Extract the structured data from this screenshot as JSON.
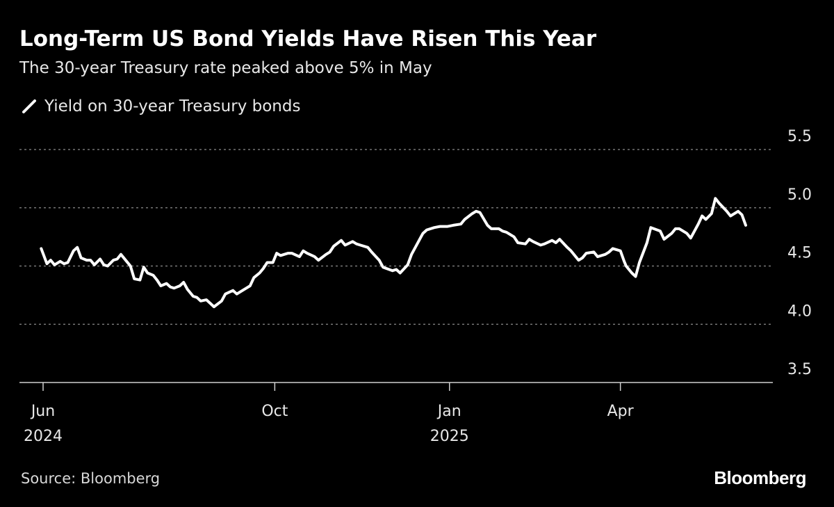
{
  "colors": {
    "background": "#000000",
    "line": "#ffffff",
    "grid": "#8c8c8c",
    "text": "#e8e8e8"
  },
  "source": "Source: Bloomberg",
  "brand": "Bloomberg",
  "chart_data": {
    "type": "line",
    "title": "Long-Term US Bond Yields Have Risen This Year",
    "subtitle": "The 30-year Treasury rate peaked above 5% in May",
    "xlabel": "",
    "ylabel": "",
    "ylim": [
      3.5,
      5.5
    ],
    "yticks": [
      3.5,
      4.0,
      4.5,
      5.0,
      5.5
    ],
    "ytick_labels": [
      "3.5",
      "4.0",
      "4.5",
      "5.0",
      "5.5"
    ],
    "grid": true,
    "legend": [
      "Yield on 30-year Treasury bonds"
    ],
    "x_range": [
      "2024-06-01",
      "2025-06-06"
    ],
    "xticks": [
      {
        "date": "2024-06-01",
        "label": "Jun",
        "sublabel": "2024"
      },
      {
        "date": "2024-10-01",
        "label": "Oct",
        "sublabel": ""
      },
      {
        "date": "2025-01-01",
        "label": "Jan",
        "sublabel": "2025"
      },
      {
        "date": "2025-04-01",
        "label": "Apr",
        "sublabel": ""
      }
    ],
    "series": [
      {
        "name": "Yield on 30-year Treasury bonds",
        "x": [
          "2024-05-31",
          "2024-06-03",
          "2024-06-05",
          "2024-06-07",
          "2024-06-10",
          "2024-06-12",
          "2024-06-14",
          "2024-06-17",
          "2024-06-19",
          "2024-06-21",
          "2024-06-24",
          "2024-06-26",
          "2024-06-28",
          "2024-07-01",
          "2024-07-03",
          "2024-07-05",
          "2024-07-08",
          "2024-07-10",
          "2024-07-12",
          "2024-07-15",
          "2024-07-17",
          "2024-07-19",
          "2024-07-22",
          "2024-07-24",
          "2024-07-26",
          "2024-07-29",
          "2024-07-31",
          "2024-08-02",
          "2024-08-05",
          "2024-08-07",
          "2024-08-09",
          "2024-08-12",
          "2024-08-14",
          "2024-08-16",
          "2024-08-19",
          "2024-08-21",
          "2024-08-23",
          "2024-08-26",
          "2024-08-28",
          "2024-08-30",
          "2024-09-03",
          "2024-09-05",
          "2024-09-09",
          "2024-09-11",
          "2024-09-13",
          "2024-09-16",
          "2024-09-18",
          "2024-09-20",
          "2024-09-23",
          "2024-09-25",
          "2024-09-27",
          "2024-09-30",
          "2024-10-02",
          "2024-10-04",
          "2024-10-08",
          "2024-10-10",
          "2024-10-14",
          "2024-10-16",
          "2024-10-18",
          "2024-10-22",
          "2024-10-24",
          "2024-10-28",
          "2024-10-30",
          "2024-11-01",
          "2024-11-05",
          "2024-11-07",
          "2024-11-11",
          "2024-11-13",
          "2024-11-15",
          "2024-11-19",
          "2024-11-21",
          "2024-11-25",
          "2024-11-27",
          "2024-12-02",
          "2024-12-04",
          "2024-12-06",
          "2024-12-10",
          "2024-12-12",
          "2024-12-16",
          "2024-12-18",
          "2024-12-20",
          "2024-12-24",
          "2024-12-27",
          "2024-12-31",
          "2025-01-03",
          "2025-01-07",
          "2025-01-09",
          "2025-01-13",
          "2025-01-15",
          "2025-01-17",
          "2025-01-21",
          "2025-01-23",
          "2025-01-27",
          "2025-01-29",
          "2025-01-31",
          "2025-02-04",
          "2025-02-06",
          "2025-02-10",
          "2025-02-12",
          "2025-02-14",
          "2025-02-18",
          "2025-02-20",
          "2025-02-24",
          "2025-02-26",
          "2025-02-28",
          "2025-03-04",
          "2025-03-06",
          "2025-03-10",
          "2025-03-12",
          "2025-03-14",
          "2025-03-18",
          "2025-03-20",
          "2025-03-24",
          "2025-03-26",
          "2025-03-28",
          "2025-04-01",
          "2025-04-03",
          "2025-04-04",
          "2025-04-07",
          "2025-04-09",
          "2025-04-11",
          "2025-04-15",
          "2025-04-17",
          "2025-04-22",
          "2025-04-24",
          "2025-04-28",
          "2025-04-30",
          "2025-05-02",
          "2025-05-06",
          "2025-05-08",
          "2025-05-12",
          "2025-05-14",
          "2025-05-16",
          "2025-05-19",
          "2025-05-21",
          "2025-05-23",
          "2025-05-27",
          "2025-05-29",
          "2025-06-02",
          "2025-06-04",
          "2025-06-06"
        ],
        "values": [
          4.65,
          4.52,
          4.55,
          4.51,
          4.54,
          4.52,
          4.53,
          4.63,
          4.66,
          4.57,
          4.55,
          4.55,
          4.51,
          4.56,
          4.51,
          4.5,
          4.55,
          4.56,
          4.6,
          4.54,
          4.5,
          4.39,
          4.38,
          4.49,
          4.44,
          4.42,
          4.38,
          4.33,
          4.35,
          4.32,
          4.31,
          4.33,
          4.36,
          4.3,
          4.24,
          4.23,
          4.2,
          4.21,
          4.18,
          4.15,
          4.2,
          4.26,
          4.29,
          4.26,
          4.28,
          4.31,
          4.33,
          4.4,
          4.44,
          4.48,
          4.53,
          4.53,
          4.61,
          4.59,
          4.61,
          4.61,
          4.58,
          4.63,
          4.61,
          4.58,
          4.55,
          4.6,
          4.62,
          4.67,
          4.72,
          4.68,
          4.71,
          4.69,
          4.68,
          4.66,
          4.62,
          4.55,
          4.49,
          4.46,
          4.47,
          4.44,
          4.51,
          4.6,
          4.72,
          4.78,
          4.81,
          4.83,
          4.84,
          4.84,
          4.85,
          4.86,
          4.9,
          4.95,
          4.97,
          4.96,
          4.85,
          4.82,
          4.82,
          4.8,
          4.79,
          4.75,
          4.7,
          4.69,
          4.73,
          4.71,
          4.68,
          4.69,
          4.72,
          4.7,
          4.73,
          4.66,
          4.63,
          4.55,
          4.57,
          4.61,
          4.62,
          4.58,
          4.6,
          4.62,
          4.65,
          4.63,
          4.54,
          4.5,
          4.44,
          4.41,
          4.53,
          4.7,
          4.83,
          4.8,
          4.73,
          4.78,
          4.82,
          4.82,
          4.78,
          4.74,
          4.86,
          4.93,
          4.9,
          4.95,
          5.08,
          5.04,
          4.97,
          4.93,
          4.97,
          4.94,
          4.85
        ]
      }
    ]
  }
}
